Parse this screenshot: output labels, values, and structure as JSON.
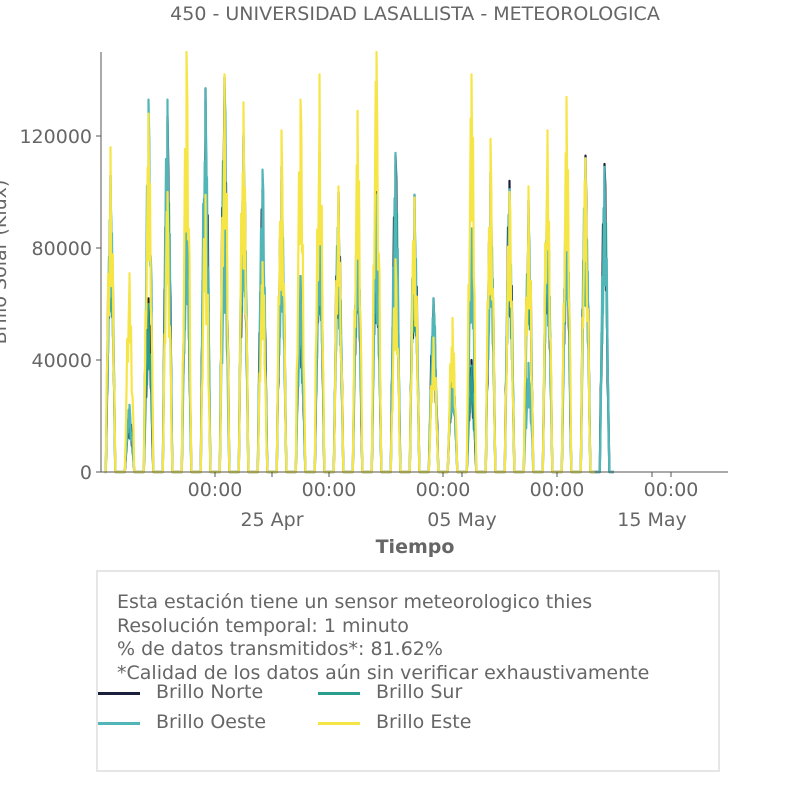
{
  "title": "450 - UNIVERSIDAD LASALLISTA - METEOROLOGICA",
  "info_box": {
    "lines": [
      "Esta estación tiene un sensor meteorologico thies",
      "Resolución temporal: 1 minuto",
      "% de datos transmitidos*: 81.62%",
      "*Calidad de los datos aún sin verificar exhaustivamente"
    ]
  },
  "chart_data": {
    "type": "line",
    "title": "450 - UNIVERSIDAD LASALLISTA - METEOROLOGICA",
    "xlabel": "Tiempo",
    "ylabel": "Brillo Solar (Klux)",
    "ylim": [
      0,
      150000
    ],
    "xlim": [
      "2024-04-16",
      "2024-05-19"
    ],
    "y_ticks": [
      0,
      40000,
      80000,
      120000
    ],
    "y_tick_labels": [
      "0",
      "40000",
      "80000",
      "120000"
    ],
    "x_ticks": [
      {
        "date": "2024-04-22",
        "label": "00:00"
      },
      {
        "date": "2024-04-28",
        "label": "00:00"
      },
      {
        "date": "2024-05-04",
        "label": "00:00"
      },
      {
        "date": "2024-05-10",
        "label": "00:00"
      },
      {
        "date": "2024-05-16",
        "label": "00:00"
      }
    ],
    "x_major_labels": [
      {
        "date": "2024-04-25",
        "label": "25 Apr"
      },
      {
        "date": "2024-05-05",
        "label": "05 May"
      },
      {
        "date": "2024-05-15",
        "label": "15 May"
      }
    ],
    "grid": false,
    "legend_position": "below, inside info box",
    "days": [
      "2024-04-16",
      "2024-04-17",
      "2024-04-18",
      "2024-04-19",
      "2024-04-20",
      "2024-04-21",
      "2024-04-22",
      "2024-04-23",
      "2024-04-24",
      "2024-04-25",
      "2024-04-26",
      "2024-04-27",
      "2024-04-28",
      "2024-04-29",
      "2024-04-30",
      "2024-05-01",
      "2024-05-02",
      "2024-05-03",
      "2024-05-04",
      "2024-05-05",
      "2024-05-06",
      "2024-05-07",
      "2024-05-08",
      "2024-05-09",
      "2024-05-10",
      "2024-05-11",
      "2024-05-12",
      "2024-05-13",
      "2024-05-14",
      "2024-05-15",
      "2024-05-16",
      "2024-05-17",
      "2024-05-18"
    ],
    "series": [
      {
        "name": "Brillo Norte",
        "color": "#1b1f3b",
        "daily_peak": [
          106000,
          22000,
          62000,
          127000,
          111000,
          137000,
          141000,
          120000,
          101000,
          109000,
          70000,
          103000,
          100000,
          97000,
          100000,
          113000,
          99000,
          62000,
          44000,
          40000,
          107000,
          104000,
          97000,
          103000,
          106000,
          113000,
          110000,
          null,
          null,
          null,
          null,
          null,
          null
        ]
      },
      {
        "name": "Brillo Sur",
        "color": "#2a9d8f",
        "daily_peak": [
          100000,
          22000,
          60000,
          125000,
          98000,
          133000,
          138000,
          118000,
          96000,
          104000,
          66000,
          98000,
          96000,
          93000,
          97000,
          110000,
          94000,
          60000,
          40000,
          38000,
          100000,
          99000,
          92000,
          98000,
          102000,
          108000,
          106000,
          null,
          null,
          null,
          null,
          null,
          null
        ]
      },
      {
        "name": "Brillo Oeste",
        "color": "#52b6b9",
        "daily_peak": [
          106000,
          24000,
          133000,
          133000,
          98000,
          137000,
          90000,
          121000,
          108000,
          100000,
          70000,
          101000,
          94000,
          101000,
          99000,
          114000,
          99000,
          62000,
          40000,
          87000,
          103000,
          101000,
          39000,
          100000,
          107000,
          112000,
          109000,
          null,
          null,
          null,
          null,
          null,
          null
        ]
      },
      {
        "name": "Brillo Este",
        "color": "#f6e547",
        "daily_peak": [
          116000,
          71000,
          128000,
          100000,
          150000,
          99000,
          142000,
          132000,
          75000,
          122000,
          133000,
          142000,
          102000,
          129000,
          150000,
          76000,
          98000,
          48000,
          55000,
          142000,
          119000,
          100000,
          102000,
          122000,
          134000,
          112000,
          null,
          null,
          null,
          null,
          null,
          null,
          null
        ]
      }
    ]
  },
  "legend": {
    "items": [
      {
        "label": "Brillo Norte",
        "color": "#1b1f3b"
      },
      {
        "label": "Brillo Sur",
        "color": "#2a9d8f"
      },
      {
        "label": "Brillo Oeste",
        "color": "#52b6b9"
      },
      {
        "label": "Brillo Este",
        "color": "#f6e547"
      }
    ]
  }
}
